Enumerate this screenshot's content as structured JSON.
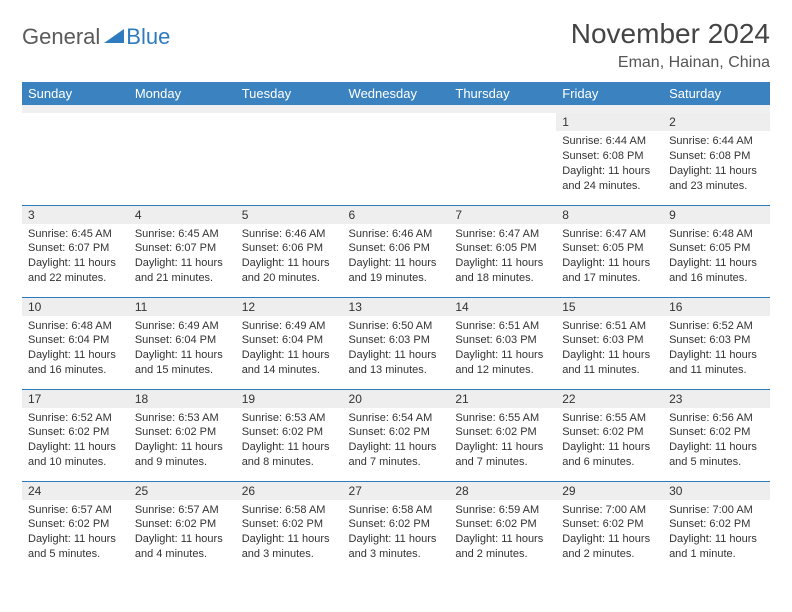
{
  "brand": {
    "part1": "General",
    "part2": "Blue"
  },
  "title": "November 2024",
  "location": "Eman, Hainan, China",
  "colors": {
    "header_bg": "#3b83c0",
    "border": "#2f7bbf",
    "daynum_bg": "#eeeeee",
    "text": "#333333",
    "title_text": "#444444"
  },
  "weekdays": [
    "Sunday",
    "Monday",
    "Tuesday",
    "Wednesday",
    "Thursday",
    "Friday",
    "Saturday"
  ],
  "weeks": [
    [
      null,
      null,
      null,
      null,
      null,
      {
        "day": "1",
        "sunrise": "Sunrise: 6:44 AM",
        "sunset": "Sunset: 6:08 PM",
        "daylight": "Daylight: 11 hours and 24 minutes."
      },
      {
        "day": "2",
        "sunrise": "Sunrise: 6:44 AM",
        "sunset": "Sunset: 6:08 PM",
        "daylight": "Daylight: 11 hours and 23 minutes."
      }
    ],
    [
      {
        "day": "3",
        "sunrise": "Sunrise: 6:45 AM",
        "sunset": "Sunset: 6:07 PM",
        "daylight": "Daylight: 11 hours and 22 minutes."
      },
      {
        "day": "4",
        "sunrise": "Sunrise: 6:45 AM",
        "sunset": "Sunset: 6:07 PM",
        "daylight": "Daylight: 11 hours and 21 minutes."
      },
      {
        "day": "5",
        "sunrise": "Sunrise: 6:46 AM",
        "sunset": "Sunset: 6:06 PM",
        "daylight": "Daylight: 11 hours and 20 minutes."
      },
      {
        "day": "6",
        "sunrise": "Sunrise: 6:46 AM",
        "sunset": "Sunset: 6:06 PM",
        "daylight": "Daylight: 11 hours and 19 minutes."
      },
      {
        "day": "7",
        "sunrise": "Sunrise: 6:47 AM",
        "sunset": "Sunset: 6:05 PM",
        "daylight": "Daylight: 11 hours and 18 minutes."
      },
      {
        "day": "8",
        "sunrise": "Sunrise: 6:47 AM",
        "sunset": "Sunset: 6:05 PM",
        "daylight": "Daylight: 11 hours and 17 minutes."
      },
      {
        "day": "9",
        "sunrise": "Sunrise: 6:48 AM",
        "sunset": "Sunset: 6:05 PM",
        "daylight": "Daylight: 11 hours and 16 minutes."
      }
    ],
    [
      {
        "day": "10",
        "sunrise": "Sunrise: 6:48 AM",
        "sunset": "Sunset: 6:04 PM",
        "daylight": "Daylight: 11 hours and 16 minutes."
      },
      {
        "day": "11",
        "sunrise": "Sunrise: 6:49 AM",
        "sunset": "Sunset: 6:04 PM",
        "daylight": "Daylight: 11 hours and 15 minutes."
      },
      {
        "day": "12",
        "sunrise": "Sunrise: 6:49 AM",
        "sunset": "Sunset: 6:04 PM",
        "daylight": "Daylight: 11 hours and 14 minutes."
      },
      {
        "day": "13",
        "sunrise": "Sunrise: 6:50 AM",
        "sunset": "Sunset: 6:03 PM",
        "daylight": "Daylight: 11 hours and 13 minutes."
      },
      {
        "day": "14",
        "sunrise": "Sunrise: 6:51 AM",
        "sunset": "Sunset: 6:03 PM",
        "daylight": "Daylight: 11 hours and 12 minutes."
      },
      {
        "day": "15",
        "sunrise": "Sunrise: 6:51 AM",
        "sunset": "Sunset: 6:03 PM",
        "daylight": "Daylight: 11 hours and 11 minutes."
      },
      {
        "day": "16",
        "sunrise": "Sunrise: 6:52 AM",
        "sunset": "Sunset: 6:03 PM",
        "daylight": "Daylight: 11 hours and 11 minutes."
      }
    ],
    [
      {
        "day": "17",
        "sunrise": "Sunrise: 6:52 AM",
        "sunset": "Sunset: 6:02 PM",
        "daylight": "Daylight: 11 hours and 10 minutes."
      },
      {
        "day": "18",
        "sunrise": "Sunrise: 6:53 AM",
        "sunset": "Sunset: 6:02 PM",
        "daylight": "Daylight: 11 hours and 9 minutes."
      },
      {
        "day": "19",
        "sunrise": "Sunrise: 6:53 AM",
        "sunset": "Sunset: 6:02 PM",
        "daylight": "Daylight: 11 hours and 8 minutes."
      },
      {
        "day": "20",
        "sunrise": "Sunrise: 6:54 AM",
        "sunset": "Sunset: 6:02 PM",
        "daylight": "Daylight: 11 hours and 7 minutes."
      },
      {
        "day": "21",
        "sunrise": "Sunrise: 6:55 AM",
        "sunset": "Sunset: 6:02 PM",
        "daylight": "Daylight: 11 hours and 7 minutes."
      },
      {
        "day": "22",
        "sunrise": "Sunrise: 6:55 AM",
        "sunset": "Sunset: 6:02 PM",
        "daylight": "Daylight: 11 hours and 6 minutes."
      },
      {
        "day": "23",
        "sunrise": "Sunrise: 6:56 AM",
        "sunset": "Sunset: 6:02 PM",
        "daylight": "Daylight: 11 hours and 5 minutes."
      }
    ],
    [
      {
        "day": "24",
        "sunrise": "Sunrise: 6:57 AM",
        "sunset": "Sunset: 6:02 PM",
        "daylight": "Daylight: 11 hours and 5 minutes."
      },
      {
        "day": "25",
        "sunrise": "Sunrise: 6:57 AM",
        "sunset": "Sunset: 6:02 PM",
        "daylight": "Daylight: 11 hours and 4 minutes."
      },
      {
        "day": "26",
        "sunrise": "Sunrise: 6:58 AM",
        "sunset": "Sunset: 6:02 PM",
        "daylight": "Daylight: 11 hours and 3 minutes."
      },
      {
        "day": "27",
        "sunrise": "Sunrise: 6:58 AM",
        "sunset": "Sunset: 6:02 PM",
        "daylight": "Daylight: 11 hours and 3 minutes."
      },
      {
        "day": "28",
        "sunrise": "Sunrise: 6:59 AM",
        "sunset": "Sunset: 6:02 PM",
        "daylight": "Daylight: 11 hours and 2 minutes."
      },
      {
        "day": "29",
        "sunrise": "Sunrise: 7:00 AM",
        "sunset": "Sunset: 6:02 PM",
        "daylight": "Daylight: 11 hours and 2 minutes."
      },
      {
        "day": "30",
        "sunrise": "Sunrise: 7:00 AM",
        "sunset": "Sunset: 6:02 PM",
        "daylight": "Daylight: 11 hours and 1 minute."
      }
    ]
  ]
}
